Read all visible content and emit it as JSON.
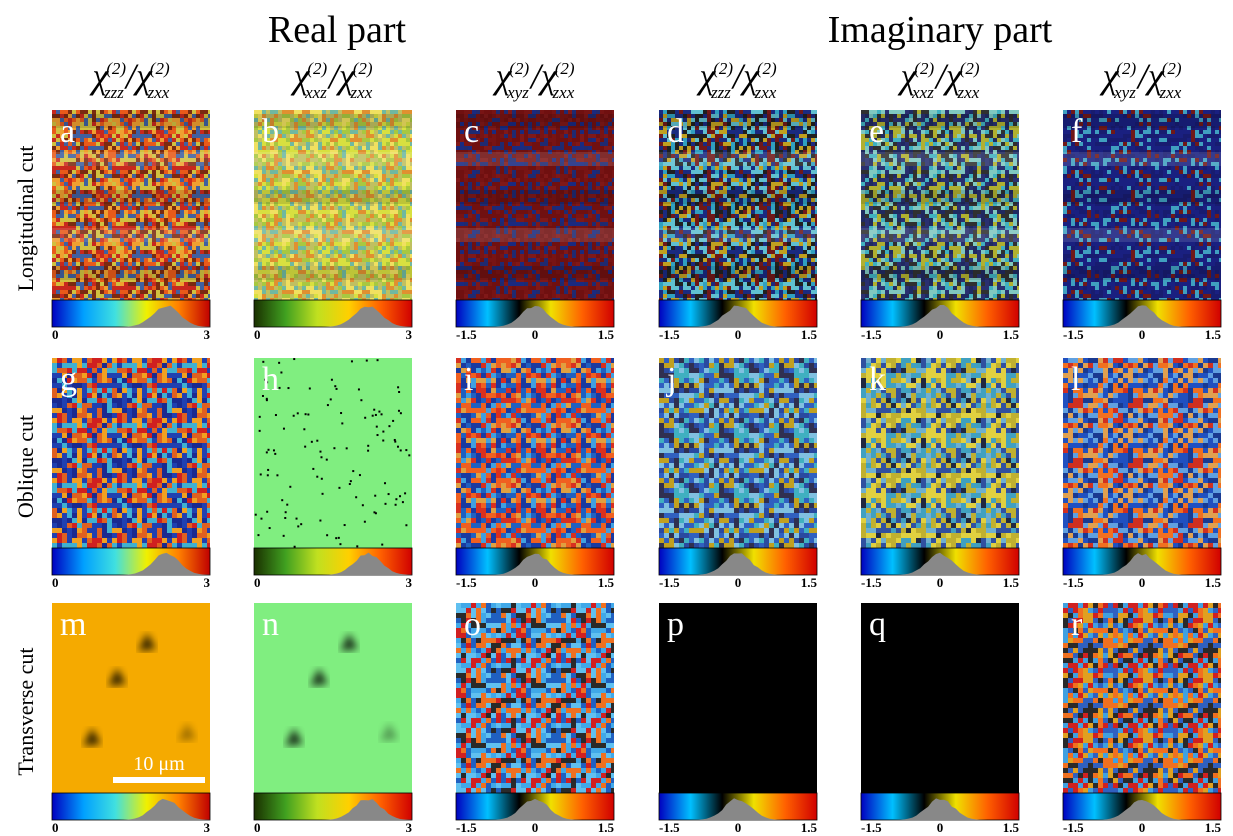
{
  "headings": {
    "real": "Real part",
    "imaginary": "Imaginary part"
  },
  "ratio": {
    "symbol": "χ",
    "order": "(2)",
    "separator": "/",
    "denominator_sub": "zxx"
  },
  "columns": [
    {
      "sub": "zzz",
      "colorbar_ticks": [
        0,
        3
      ]
    },
    {
      "sub": "xxz",
      "colorbar_ticks": [
        0,
        3
      ]
    },
    {
      "sub": "xyz",
      "colorbar_ticks": [
        -1.5,
        0,
        1.5
      ]
    },
    {
      "sub": "zzz",
      "colorbar_ticks": [
        -1.5,
        0,
        1.5
      ]
    },
    {
      "sub": "xxz",
      "colorbar_ticks": [
        -1.5,
        0,
        1.5
      ]
    },
    {
      "sub": "xyz",
      "colorbar_ticks": [
        -1.5,
        0,
        1.5
      ]
    }
  ],
  "rows": [
    {
      "label": "Longitudinal cut",
      "panels": [
        "a",
        "b",
        "c",
        "d",
        "e",
        "f"
      ]
    },
    {
      "label": "Oblique cut",
      "panels": [
        "g",
        "h",
        "i",
        "j",
        "k",
        "l"
      ]
    },
    {
      "label": "Transverse cut",
      "panels": [
        "m",
        "n",
        "o",
        "p",
        "q",
        "r"
      ]
    }
  ],
  "scale_bar": "10 μm"
}
